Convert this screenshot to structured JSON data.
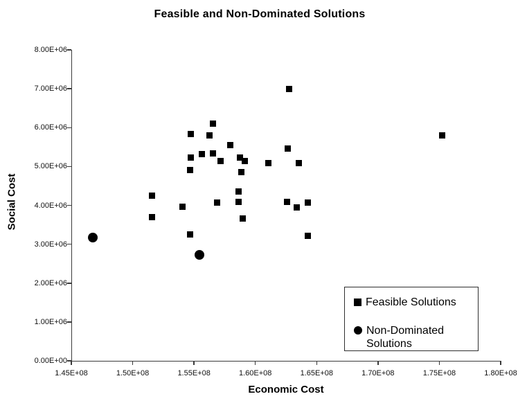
{
  "chart_data": {
    "type": "scatter",
    "title": "Feasible and Non-Dominated Solutions",
    "xlabel": "Economic Cost",
    "ylabel": "Social Cost",
    "xlim": [
      145000000,
      180000000
    ],
    "ylim": [
      0,
      8000000
    ],
    "grid": false,
    "legend_position": "inside-bottom-right",
    "x_ticks": [
      145000000,
      150000000,
      155000000,
      160000000,
      165000000,
      170000000,
      175000000,
      180000000
    ],
    "x_tick_labels": [
      "1.45E+08",
      "1.50E+08",
      "1.55E+08",
      "1.60E+08",
      "1.65E+08",
      "1.70E+08",
      "1.75E+08",
      "1.80E+08"
    ],
    "y_ticks": [
      0,
      1000000,
      2000000,
      3000000,
      4000000,
      5000000,
      6000000,
      7000000,
      8000000
    ],
    "y_tick_labels": [
      "0.00E+00",
      "1.00E+06",
      "2.00E+06",
      "3.00E+06",
      "4.00E+06",
      "5.00E+06",
      "6.00E+06",
      "7.00E+06",
      "8.00E+06"
    ],
    "series": [
      {
        "name": "Feasible Solutions",
        "marker": "square",
        "points": [
          [
            162700000,
            6990000
          ],
          [
            156500000,
            6100000
          ],
          [
            154700000,
            5830000
          ],
          [
            156200000,
            5800000
          ],
          [
            157900000,
            5550000
          ],
          [
            162600000,
            5460000
          ],
          [
            155600000,
            5320000
          ],
          [
            156500000,
            5340000
          ],
          [
            154700000,
            5230000
          ],
          [
            157100000,
            5140000
          ],
          [
            158700000,
            5230000
          ],
          [
            159100000,
            5140000
          ],
          [
            161000000,
            5090000
          ],
          [
            163500000,
            5090000
          ],
          [
            154600000,
            4910000
          ],
          [
            158800000,
            4860000
          ],
          [
            151500000,
            4250000
          ],
          [
            158600000,
            4360000
          ],
          [
            154000000,
            3970000
          ],
          [
            156800000,
            4070000
          ],
          [
            158600000,
            4090000
          ],
          [
            162500000,
            4090000
          ],
          [
            163300000,
            3950000
          ],
          [
            164200000,
            4070000
          ],
          [
            151500000,
            3700000
          ],
          [
            158900000,
            3660000
          ],
          [
            154600000,
            3250000
          ],
          [
            164200000,
            3220000
          ],
          [
            175200000,
            5800000
          ]
        ]
      },
      {
        "name": "Non-Dominated Solutions",
        "marker": "circle",
        "points": [
          [
            146700000,
            3180000
          ],
          [
            155400000,
            2720000
          ]
        ]
      }
    ]
  },
  "colors": {
    "marker": "#000000",
    "axis": "#3a3a3a",
    "background": "#ffffff",
    "text": "#000000"
  }
}
